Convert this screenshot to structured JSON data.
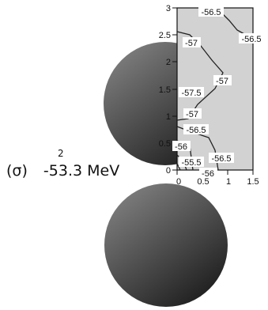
{
  "caption": {
    "symbol": "(σ)",
    "power": "2",
    "energy": "-53.3 MeV"
  },
  "contour_plot": {
    "panel_color": "#d2d2d2",
    "x_ticks": [
      "0",
      "0.5",
      "1",
      "1.5"
    ],
    "y_ticks": [
      "0",
      "0.5",
      "1",
      "1.5",
      "2",
      "2.5",
      "3"
    ],
    "contour_labels": [
      "-56.5",
      "-56.5",
      "-57",
      "-57",
      "-57.5",
      "-57",
      "-56.5",
      "-56.5",
      "-56",
      "-55.5",
      "-56"
    ]
  },
  "spheres": {
    "light_color": "#8a8a8a",
    "dark_color": "#1e1e1e"
  }
}
